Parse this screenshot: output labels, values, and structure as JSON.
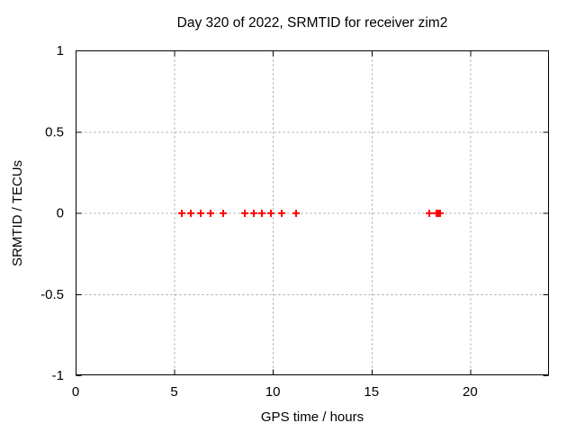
{
  "figure": {
    "background": "#ffffff",
    "text_color": "#000000"
  },
  "chart_data": {
    "type": "scatter",
    "title": "Day 320 of 2022, SRMTID for receiver zim2",
    "xlabel": "GPS time / hours",
    "ylabel": "SRMTID / TECUs",
    "xlim": [
      0,
      24
    ],
    "ylim": [
      -1,
      1
    ],
    "grid": true,
    "legend_position": "none",
    "xticks": [
      {
        "v": 0,
        "label": "0"
      },
      {
        "v": 5,
        "label": "5"
      },
      {
        "v": 10,
        "label": "10"
      },
      {
        "v": 15,
        "label": "15"
      },
      {
        "v": 20,
        "label": "20"
      }
    ],
    "yticks": [
      {
        "v": 1,
        "label": "1"
      },
      {
        "v": 0.5,
        "label": "0.5"
      },
      {
        "v": 0,
        "label": "0"
      },
      {
        "v": -0.5,
        "label": "-0.5"
      },
      {
        "v": -1,
        "label": "-1"
      }
    ],
    "series": [
      {
        "name": "SRMTID",
        "marker": "plus",
        "color": "#ff0000",
        "x": [
          5.39,
          5.84,
          6.34,
          6.86,
          7.47,
          8.56,
          9.02,
          9.46,
          9.9,
          10.46,
          11.18,
          17.92,
          18.3,
          18.36,
          18.42,
          18.48
        ],
        "y": [
          0,
          0,
          0,
          0,
          0,
          0,
          0,
          0,
          0,
          0,
          0,
          0,
          0,
          0,
          0,
          0
        ]
      }
    ],
    "colors": {
      "border": "#000000",
      "grid": "#a0a0a0",
      "marker": "#ff0000"
    }
  }
}
